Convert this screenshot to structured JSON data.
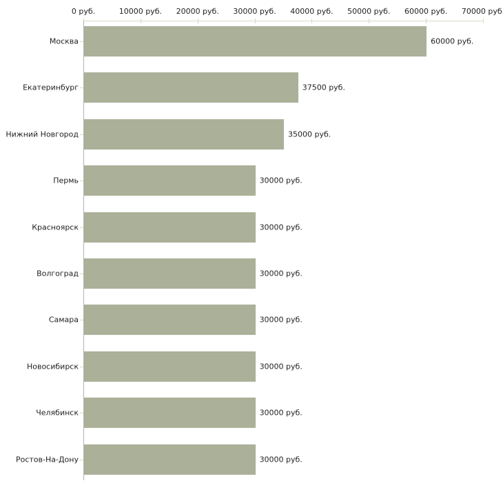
{
  "chart_data": {
    "type": "bar",
    "orientation": "horizontal",
    "title": "",
    "xlabel": "",
    "ylabel": "",
    "categories": [
      "Москва",
      "Екатеринбург",
      "Нижний Новгород",
      "Пермь",
      "Красноярск",
      "Волгоград",
      "Самара",
      "Новосибирск",
      "Челябинск",
      "Ростов-На-Дону"
    ],
    "values": [
      60000,
      37500,
      35000,
      30000,
      30000,
      30000,
      30000,
      30000,
      30000,
      30000
    ],
    "value_labels": [
      "60000 руб.",
      "37500 руб.",
      "35000 руб.",
      "30000 руб.",
      "30000 руб.",
      "30000 руб.",
      "30000 руб.",
      "30000 руб.",
      "30000 руб.",
      "30000 руб."
    ],
    "x_tick_values": [
      0,
      10000,
      20000,
      30000,
      40000,
      50000,
      60000,
      70000
    ],
    "x_tick_labels": [
      "0 руб.",
      "10000 руб.",
      "20000 руб.",
      "30000 руб.",
      "40000 руб.",
      "50000 руб.",
      "60000 руб.",
      "70000 руб."
    ],
    "xlim": [
      0,
      70000
    ],
    "grid": false,
    "legend": false,
    "colors": {
      "bar_fill": "#abb199",
      "x_axis_line": "#d8d9c3",
      "x_tick": "#d8d9c3",
      "y_axis_line": "#b0b0b0",
      "y_tick": "#d9d9bb",
      "text": "#222222",
      "background": "#ffffff"
    }
  }
}
